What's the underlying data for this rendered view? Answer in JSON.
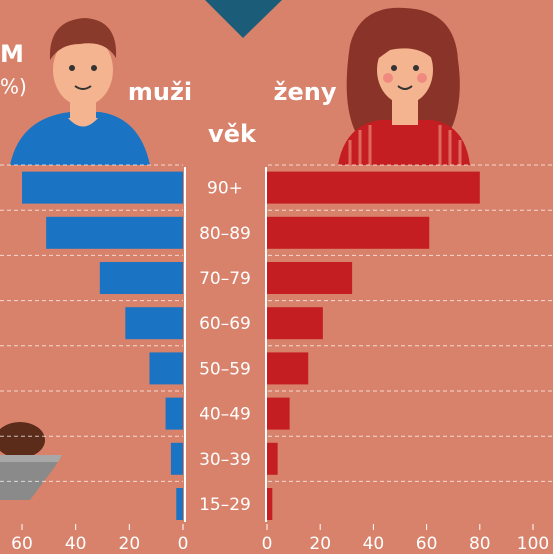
{
  "title_fragment": "M",
  "subtitle_fragment": "%)",
  "chart_data": {
    "type": "pyramid",
    "left_label": "muži",
    "right_label": "ženy",
    "center_label": "věk",
    "categories": [
      "90+",
      "80–89",
      "70–79",
      "60–69",
      "50–59",
      "40–49",
      "30–39",
      "15–29"
    ],
    "series": [
      {
        "name": "muži",
        "side": "left",
        "color": "#1b74c3",
        "values": [
          60,
          51,
          31,
          21.5,
          12.5,
          6.5,
          4.5,
          2.5
        ]
      },
      {
        "name": "ženy",
        "side": "right",
        "color": "#c41e22",
        "values": [
          80,
          61,
          32,
          21,
          15.5,
          8.5,
          4,
          2
        ]
      }
    ],
    "xlim_left": [
      0,
      60
    ],
    "xticks_left": [
      60,
      40,
      20,
      0
    ],
    "xlim": [
      0,
      100
    ],
    "xticks": [
      0,
      20,
      40,
      60,
      80,
      100
    ],
    "grid": true
  }
}
